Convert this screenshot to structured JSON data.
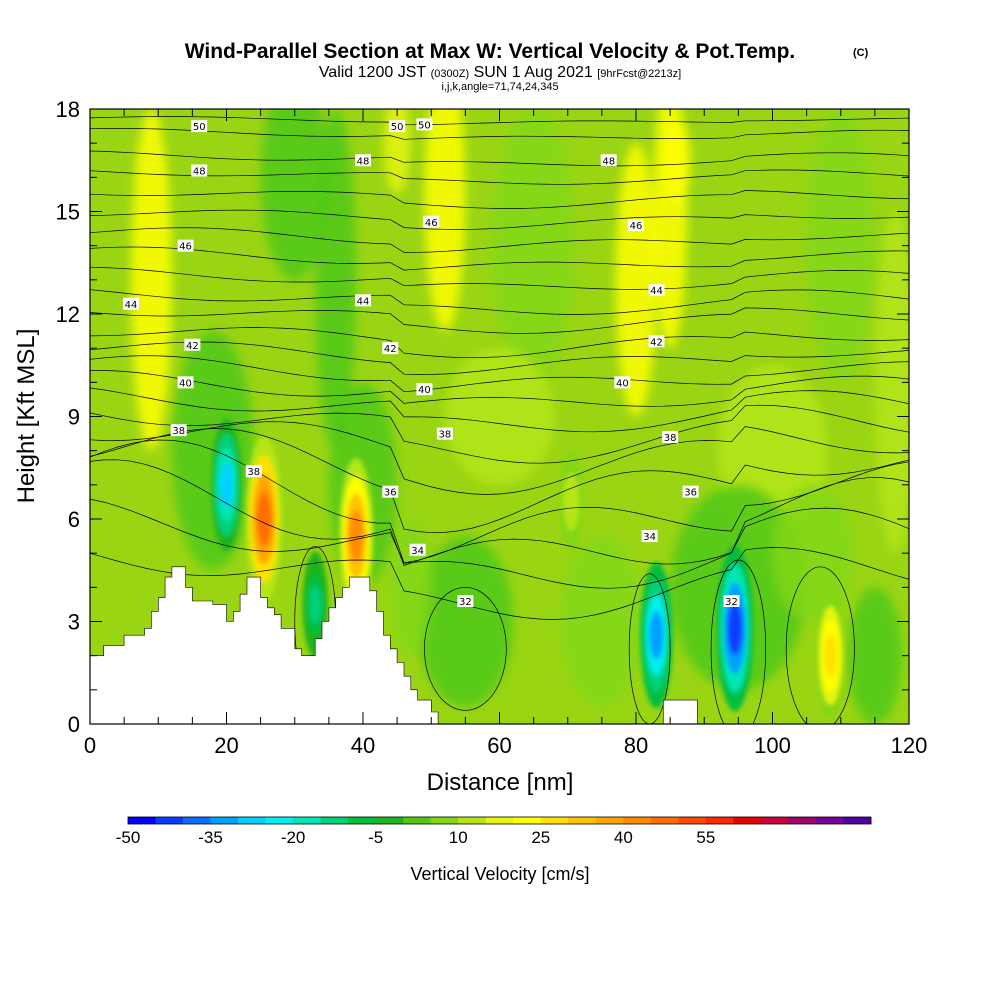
{
  "chart_data": {
    "type": "heatmap",
    "title_main": "Wind-Parallel Section at Max W: Vertical Velocity & Pot.Temp.",
    "title_copyright": "(C)",
    "subtitle_valid": "Valid 1200 JST",
    "subtitle_utc": "(0300Z)",
    "subtitle_date": "SUN 1 Aug 2021",
    "subtitle_fcst": "[9hrFcst@2213z]",
    "subtitle_indices": "i,j,k,angle=71,74,24,345",
    "xlabel": "Distance [nm]",
    "ylabel": "Height [Kft MSL]",
    "xlim": [
      0,
      120
    ],
    "ylim": [
      0,
      18
    ],
    "x_ticks": [
      "0",
      "20",
      "40",
      "60",
      "80",
      "100",
      "120"
    ],
    "y_ticks": [
      "0",
      "3",
      "6",
      "9",
      "12",
      "15",
      "18"
    ],
    "colorbar": {
      "label": "Vertical Velocity [cm/s]",
      "tick_labels": [
        "-50",
        "-35",
        "-20",
        "-5",
        "10",
        "25",
        "40",
        "55"
      ],
      "colors": [
        "#0000ff",
        "#0a3cff",
        "#0f6eff",
        "#00a0ff",
        "#00d2ff",
        "#00f0f0",
        "#00e6b4",
        "#00d278",
        "#00be3c",
        "#1eb41e",
        "#50c814",
        "#82d714",
        "#b4e614",
        "#e6f50a",
        "#ffff00",
        "#ffe100",
        "#ffc300",
        "#ffa500",
        "#ff8c00",
        "#ff6e00",
        "#ff4b00",
        "#ff2800",
        "#e60000",
        "#c8003c",
        "#a0006e",
        "#780096",
        "#5000a0"
      ]
    },
    "contours": {
      "variable": "Potential temperature",
      "labels": [
        {
          "text": "50",
          "x": 16,
          "y": 17.5
        },
        {
          "text": "50",
          "x": 45,
          "y": 17.5
        },
        {
          "text": "50",
          "x": 49,
          "y": 17.55
        },
        {
          "text": "48",
          "x": 16,
          "y": 16.2
        },
        {
          "text": "48",
          "x": 40,
          "y": 16.5
        },
        {
          "text": "48",
          "x": 76,
          "y": 16.5
        },
        {
          "text": "46",
          "x": 14,
          "y": 14.0
        },
        {
          "text": "46",
          "x": 50,
          "y": 14.7
        },
        {
          "text": "46",
          "x": 80,
          "y": 14.6
        },
        {
          "text": "44",
          "x": 6,
          "y": 12.3
        },
        {
          "text": "44",
          "x": 40,
          "y": 12.4
        },
        {
          "text": "44",
          "x": 83,
          "y": 12.7
        },
        {
          "text": "42",
          "x": 15,
          "y": 11.1
        },
        {
          "text": "42",
          "x": 44,
          "y": 11.0
        },
        {
          "text": "42",
          "x": 83,
          "y": 11.2
        },
        {
          "text": "40",
          "x": 14,
          "y": 10.0
        },
        {
          "text": "40",
          "x": 49,
          "y": 9.8
        },
        {
          "text": "40",
          "x": 78,
          "y": 10.0
        },
        {
          "text": "38",
          "x": 13,
          "y": 8.6
        },
        {
          "text": "38",
          "x": 52,
          "y": 8.5
        },
        {
          "text": "38",
          "x": 85,
          "y": 8.4
        },
        {
          "text": "38",
          "x": 24,
          "y": 7.4
        },
        {
          "text": "36",
          "x": 44,
          "y": 6.8
        },
        {
          "text": "36",
          "x": 88,
          "y": 6.8
        },
        {
          "text": "34",
          "x": 48,
          "y": 5.1
        },
        {
          "text": "34",
          "x": 82,
          "y": 5.5
        },
        {
          "text": "32",
          "x": 55,
          "y": 3.6
        },
        {
          "text": "32",
          "x": 94,
          "y": 3.6
        }
      ]
    },
    "features": [
      {
        "kind": "updraft",
        "x": 25.5,
        "y": 6.0,
        "w_cms": 45
      },
      {
        "kind": "updraft",
        "x": 39,
        "y": 5.5,
        "w_cms": 40
      },
      {
        "kind": "updraft",
        "x": 108.5,
        "y": 2.0,
        "w_cms": 25
      },
      {
        "kind": "updraft",
        "x": 70.5,
        "y": 6.5,
        "w_cms": 12
      },
      {
        "kind": "downdraft",
        "x": 94.5,
        "y": 2.8,
        "w_cms": -45
      },
      {
        "kind": "downdraft",
        "x": 83,
        "y": 2.6,
        "w_cms": -35
      },
      {
        "kind": "downdraft",
        "x": 20,
        "y": 7.0,
        "w_cms": -28
      },
      {
        "kind": "downdraft",
        "x": 33,
        "y": 3.5,
        "w_cms": -15
      }
    ],
    "terrain_kft": [
      [
        0,
        2.0
      ],
      [
        2,
        2.0
      ],
      [
        2,
        2.3
      ],
      [
        5,
        2.3
      ],
      [
        5,
        2.6
      ],
      [
        8,
        2.6
      ],
      [
        8,
        2.8
      ],
      [
        9,
        2.8
      ],
      [
        9,
        3.3
      ],
      [
        10,
        3.3
      ],
      [
        10,
        3.7
      ],
      [
        11,
        3.7
      ],
      [
        11,
        4.3
      ],
      [
        12,
        4.3
      ],
      [
        12,
        4.6
      ],
      [
        14,
        4.6
      ],
      [
        14,
        4.0
      ],
      [
        15,
        4.0
      ],
      [
        15,
        3.6
      ],
      [
        18,
        3.6
      ],
      [
        18,
        3.5
      ],
      [
        20,
        3.5
      ],
      [
        20,
        3.0
      ],
      [
        21,
        3.0
      ],
      [
        21,
        3.3
      ],
      [
        22,
        3.3
      ],
      [
        22,
        3.8
      ],
      [
        23,
        3.8
      ],
      [
        23,
        4.3
      ],
      [
        25,
        4.3
      ],
      [
        25,
        3.7
      ],
      [
        26,
        3.7
      ],
      [
        26,
        3.4
      ],
      [
        27,
        3.4
      ],
      [
        27,
        3.2
      ],
      [
        28,
        3.2
      ],
      [
        28,
        2.8
      ],
      [
        30,
        2.8
      ],
      [
        30,
        2.2
      ],
      [
        31,
        2.2
      ],
      [
        31,
        2.0
      ],
      [
        33,
        2.0
      ],
      [
        33,
        2.5
      ],
      [
        34,
        2.5
      ],
      [
        34,
        3.0
      ],
      [
        35,
        3.0
      ],
      [
        35,
        3.4
      ],
      [
        36,
        3.4
      ],
      [
        36,
        3.7
      ],
      [
        37,
        3.7
      ],
      [
        37,
        4.0
      ],
      [
        38,
        4.0
      ],
      [
        38,
        4.3
      ],
      [
        41,
        4.3
      ],
      [
        41,
        3.9
      ],
      [
        42,
        3.9
      ],
      [
        42,
        3.3
      ],
      [
        43,
        3.3
      ],
      [
        43,
        2.6
      ],
      [
        44,
        2.6
      ],
      [
        44,
        2.2
      ],
      [
        45,
        2.2
      ],
      [
        45,
        1.8
      ],
      [
        46,
        1.8
      ],
      [
        46,
        1.4
      ],
      [
        47,
        1.4
      ],
      [
        47,
        1.0
      ],
      [
        48,
        1.0
      ],
      [
        48,
        0.7
      ],
      [
        50,
        0.7
      ],
      [
        50,
        0.35
      ],
      [
        51,
        0.35
      ],
      [
        51,
        0
      ],
      [
        84,
        0
      ],
      [
        84,
        0.7
      ],
      [
        89,
        0.7
      ],
      [
        89,
        0
      ],
      [
        120,
        0
      ]
    ]
  }
}
